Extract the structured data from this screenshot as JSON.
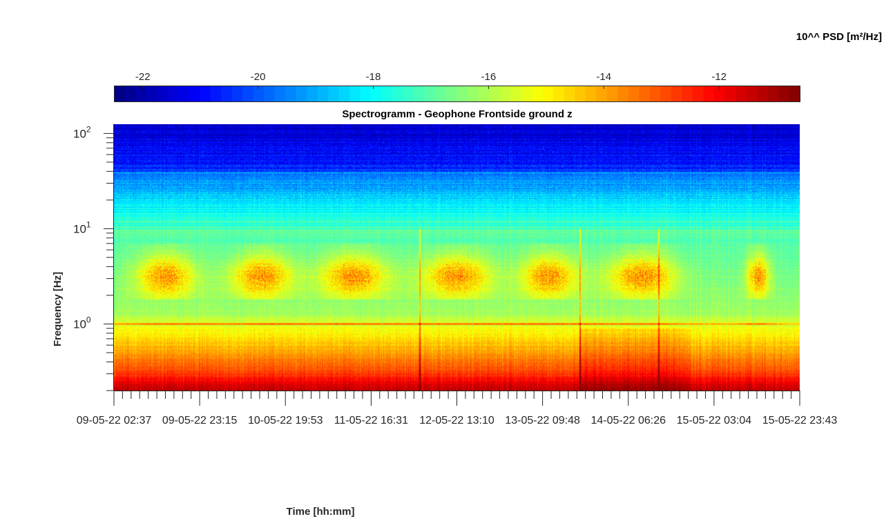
{
  "chart_data": {
    "type": "heatmap",
    "title": "Spectrogramm - Geophone Frontside ground z",
    "xlabel": "Time [hh:mm]",
    "ylabel": "Frequency [Hz]",
    "y_scale": "log",
    "ylim": [
      0.2,
      125
    ],
    "y_ticks": [
      {
        "value": 1,
        "base": "10",
        "exp": "0"
      },
      {
        "value": 10,
        "base": "10",
        "exp": "1"
      },
      {
        "value": 100,
        "base": "10",
        "exp": "2"
      }
    ],
    "x_ticks": [
      "09-05-22 02:37",
      "09-05-22 23:15",
      "10-05-22 19:53",
      "11-05-22 16:31",
      "12-05-22 13:10",
      "13-05-22 09:48",
      "14-05-22 06:26",
      "15-05-22 03:04",
      "15-05-22 23:43"
    ],
    "xlim": [
      "09-05-22 02:37",
      "15-05-22 23:43"
    ],
    "colorbar": {
      "label": "10^^ PSD [m²/Hz]",
      "colormap": "jet",
      "range": [
        -22.5,
        -10.6
      ],
      "ticks": [
        "-22",
        "-20",
        "-18",
        "-16",
        "-14",
        "-12"
      ],
      "tick_values": [
        -22,
        -20,
        -18,
        -16,
        -14,
        -12
      ],
      "location": "top"
    },
    "features": {
      "high_frequency_level": -21.5,
      "low_frequency_level": -11.8,
      "daily_activity_band_hz": [
        2,
        6
      ],
      "persistent_line_hz": 1.0,
      "transient_events": [
        "12-05-22 08:40",
        "14-05-22 02:55",
        "14-05-22 22:30"
      ]
    }
  }
}
